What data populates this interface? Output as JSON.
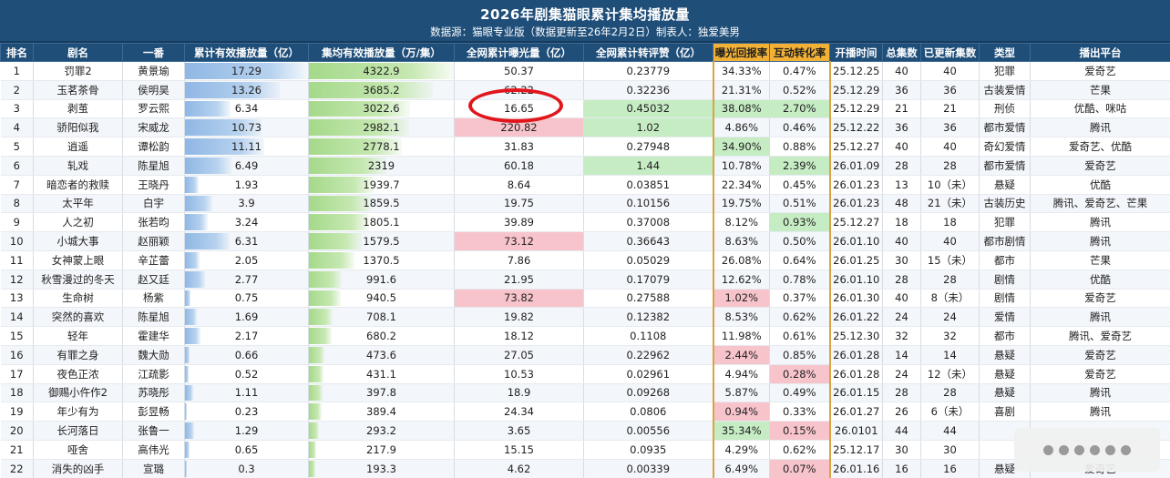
{
  "header": {
    "title": "2026年剧集猫眼累计集均播放量",
    "subtitle": "数据源：猫眼专业版（数据更新至26年2月2日）制表人：独爱美男"
  },
  "columns": [
    "排名",
    "剧名",
    "一番",
    "累计有效播放量（亿）",
    "集均有效播放量（万/集）",
    "全网累计曝光量（亿）",
    "全网累计转评赞（亿）",
    "曝光回报率",
    "互动转化率",
    "开播时间",
    "总集数",
    "已更新集数",
    "类型",
    "播出平台"
  ],
  "colors": {
    "header_bg": "#1f4e79",
    "highlight_col": "#f2b134",
    "pink": "#f7c4cb",
    "light_green": "#c6ecc4",
    "circle": "#e1161d"
  },
  "chart_data": {
    "type": "table",
    "title": "2026年剧集猫眼累计集均播放量",
    "rows": [
      {
        "rank": "1",
        "name": "罚罪2",
        "lead": "黄景瑜",
        "total": "17.29",
        "avg": "4322.9",
        "exposure": "50.37",
        "engage": "0.23779",
        "ret": "34.33%",
        "conv": "0.47%",
        "date": "25.12.25",
        "eps": "40",
        "upd": "40",
        "genre": "犯罪",
        "platform": "爱奇艺"
      },
      {
        "rank": "2",
        "name": "玉茗茶骨",
        "lead": "侯明昊",
        "total": "13.26",
        "avg": "3685.2",
        "exposure": "62.22",
        "engage": "0.32236",
        "ret": "21.31%",
        "conv": "0.52%",
        "date": "25.12.29",
        "eps": "36",
        "upd": "36",
        "genre": "古装爱情",
        "platform": "芒果"
      },
      {
        "rank": "3",
        "name": "剥茧",
        "lead": "罗云熙",
        "total": "6.34",
        "avg": "3022.6",
        "exposure": "16.65",
        "engage": "0.45032",
        "ret": "38.08%",
        "conv": "2.70%",
        "date": "25.12.29",
        "eps": "21",
        "upd": "21",
        "genre": "刑侦",
        "platform": "优酷、咪咕"
      },
      {
        "rank": "4",
        "name": "骄阳似我",
        "lead": "宋威龙",
        "total": "10.73",
        "avg": "2982.1",
        "exposure": "220.82",
        "engage": "1.02",
        "ret": "4.86%",
        "conv": "0.46%",
        "date": "25.12.22",
        "eps": "36",
        "upd": "36",
        "genre": "都市爱情",
        "platform": "腾讯"
      },
      {
        "rank": "5",
        "name": "逍遥",
        "lead": "谭松韵",
        "total": "11.11",
        "avg": "2778.1",
        "exposure": "31.83",
        "engage": "0.27948",
        "ret": "34.90%",
        "conv": "0.88%",
        "date": "25.12.27",
        "eps": "40",
        "upd": "40",
        "genre": "奇幻爱情",
        "platform": "爱奇艺、优酷"
      },
      {
        "rank": "6",
        "name": "轧戏",
        "lead": "陈星旭",
        "total": "6.49",
        "avg": "2319",
        "exposure": "60.18",
        "engage": "1.44",
        "ret": "10.78%",
        "conv": "2.39%",
        "date": "26.01.09",
        "eps": "28",
        "upd": "28",
        "genre": "都市爱情",
        "platform": "爱奇艺"
      },
      {
        "rank": "7",
        "name": "暗恋者的救赎",
        "lead": "王晓丹",
        "total": "1.93",
        "avg": "1939.7",
        "exposure": "8.64",
        "engage": "0.03851",
        "ret": "22.34%",
        "conv": "0.45%",
        "date": "26.01.23",
        "eps": "13",
        "upd": "10（未）",
        "genre": "悬疑",
        "platform": "优酷"
      },
      {
        "rank": "8",
        "name": "太平年",
        "lead": "白宇",
        "total": "3.9",
        "avg": "1859.5",
        "exposure": "19.75",
        "engage": "0.10156",
        "ret": "19.75%",
        "conv": "0.51%",
        "date": "26.01.23",
        "eps": "48",
        "upd": "21（未）",
        "genre": "古装历史",
        "platform": "腾讯、爱奇艺、芒果"
      },
      {
        "rank": "9",
        "name": "人之初",
        "lead": "张若昀",
        "total": "3.24",
        "avg": "1805.1",
        "exposure": "39.89",
        "engage": "0.37008",
        "ret": "8.12%",
        "conv": "0.93%",
        "date": "25.12.27",
        "eps": "18",
        "upd": "18",
        "genre": "犯罪",
        "platform": "腾讯"
      },
      {
        "rank": "10",
        "name": "小城大事",
        "lead": "赵丽颖",
        "total": "6.31",
        "avg": "1579.5",
        "exposure": "73.12",
        "engage": "0.36643",
        "ret": "8.63%",
        "conv": "0.50%",
        "date": "26.01.10",
        "eps": "40",
        "upd": "40",
        "genre": "都市剧情",
        "platform": "腾讯"
      },
      {
        "rank": "11",
        "name": "女神蒙上眼",
        "lead": "辛芷蕾",
        "total": "2.05",
        "avg": "1370.5",
        "exposure": "7.86",
        "engage": "0.05029",
        "ret": "26.08%",
        "conv": "0.64%",
        "date": "26.01.25",
        "eps": "30",
        "upd": "15（未）",
        "genre": "都市",
        "platform": "芒果"
      },
      {
        "rank": "12",
        "name": "秋雪漫过的冬天",
        "lead": "赵又廷",
        "total": "2.77",
        "avg": "991.6",
        "exposure": "21.95",
        "engage": "0.17079",
        "ret": "12.62%",
        "conv": "0.78%",
        "date": "26.01.10",
        "eps": "28",
        "upd": "28",
        "genre": "剧情",
        "platform": "优酷"
      },
      {
        "rank": "13",
        "name": "生命树",
        "lead": "杨紫",
        "total": "0.75",
        "avg": "940.5",
        "exposure": "73.82",
        "engage": "0.27588",
        "ret": "1.02%",
        "conv": "0.37%",
        "date": "26.01.30",
        "eps": "40",
        "upd": "8（未）",
        "genre": "剧情",
        "platform": "爱奇艺"
      },
      {
        "rank": "14",
        "name": "突然的喜欢",
        "lead": "陈星旭",
        "total": "1.69",
        "avg": "708.1",
        "exposure": "19.82",
        "engage": "0.12382",
        "ret": "8.53%",
        "conv": "0.62%",
        "date": "26.01.22",
        "eps": "24",
        "upd": "24",
        "genre": "爱情",
        "platform": "腾讯"
      },
      {
        "rank": "15",
        "name": "轻年",
        "lead": "霍建华",
        "total": "2.17",
        "avg": "680.2",
        "exposure": "18.12",
        "engage": "0.1108",
        "ret": "11.98%",
        "conv": "0.61%",
        "date": "25.12.30",
        "eps": "32",
        "upd": "32",
        "genre": "都市",
        "platform": "腾讯、爱奇艺"
      },
      {
        "rank": "16",
        "name": "有罪之身",
        "lead": "魏大勋",
        "total": "0.66",
        "avg": "473.6",
        "exposure": "27.05",
        "engage": "0.22962",
        "ret": "2.44%",
        "conv": "0.85%",
        "date": "26.01.28",
        "eps": "14",
        "upd": "14",
        "genre": "悬疑",
        "platform": "爱奇艺"
      },
      {
        "rank": "17",
        "name": "夜色正浓",
        "lead": "江疏影",
        "total": "0.52",
        "avg": "431.1",
        "exposure": "10.53",
        "engage": "0.02961",
        "ret": "4.94%",
        "conv": "0.28%",
        "date": "26.01.28",
        "eps": "24",
        "upd": "12（未）",
        "genre": "悬疑",
        "platform": "爱奇艺"
      },
      {
        "rank": "18",
        "name": "御赐小仵作2",
        "lead": "苏晓彤",
        "total": "1.11",
        "avg": "397.8",
        "exposure": "18.9",
        "engage": "0.09268",
        "ret": "5.87%",
        "conv": "0.49%",
        "date": "26.01.15",
        "eps": "28",
        "upd": "28",
        "genre": "悬疑",
        "platform": "腾讯"
      },
      {
        "rank": "19",
        "name": "年少有为",
        "lead": "彭昱畅",
        "total": "0.23",
        "avg": "389.4",
        "exposure": "24.34",
        "engage": "0.0806",
        "ret": "0.94%",
        "conv": "0.33%",
        "date": "26.01.27",
        "eps": "26",
        "upd": "6（未）",
        "genre": "喜剧",
        "platform": "腾讯"
      },
      {
        "rank": "20",
        "name": "长河落日",
        "lead": "张鲁一",
        "total": "1.29",
        "avg": "293.2",
        "exposure": "3.65",
        "engage": "0.00556",
        "ret": "35.34%",
        "conv": "0.15%",
        "date": "26.0101",
        "eps": "44",
        "upd": "44",
        "genre": "",
        "platform": ""
      },
      {
        "rank": "21",
        "name": "哑舍",
        "lead": "高伟光",
        "total": "0.65",
        "avg": "217.9",
        "exposure": "15.15",
        "engage": "0.0935",
        "ret": "4.29%",
        "conv": "0.62%",
        "date": "25.12.17",
        "eps": "30",
        "upd": "30",
        "genre": "",
        "platform": ""
      },
      {
        "rank": "22",
        "name": "消失的凶手",
        "lead": "宣璐",
        "total": "0.3",
        "avg": "193.3",
        "exposure": "4.62",
        "engage": "0.00339",
        "ret": "6.49%",
        "conv": "0.07%",
        "date": "26.01.16",
        "eps": "16",
        "upd": "16",
        "genre": "悬疑",
        "platform": "爱奇艺"
      }
    ],
    "highlights": {
      "exposure_pink": [
        "4",
        "10",
        "13"
      ],
      "engage_green": [
        "3",
        "4",
        "6"
      ],
      "return_green": [
        "3",
        "5",
        "20"
      ],
      "return_pink": [
        "13",
        "16",
        "19"
      ],
      "conversion_green": [
        "3",
        "6",
        "9"
      ],
      "conversion_pink": [
        "17",
        "20",
        "22"
      ]
    },
    "circled": {
      "rank": "3",
      "column": "exposure"
    },
    "bar_max": {
      "total": 17.29,
      "avg": 4322.9
    }
  }
}
